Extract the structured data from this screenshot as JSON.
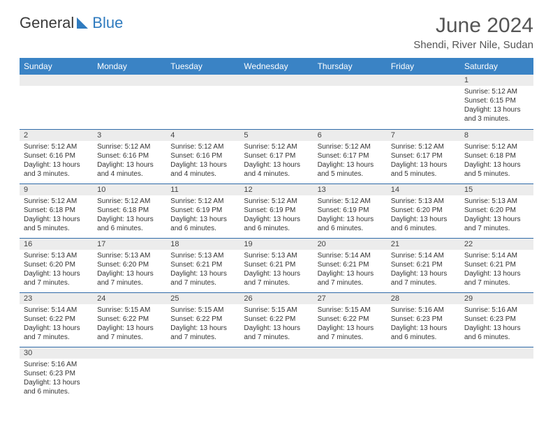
{
  "logo": {
    "text1": "General",
    "text2": "Blue"
  },
  "title": "June 2024",
  "location": "Shendi, River Nile, Sudan",
  "colors": {
    "header_bg": "#3a83c5",
    "header_text": "#ffffff",
    "row_divider": "#2f6aa8",
    "daynum_bg": "#ececec",
    "logo_blue": "#2f7bbf"
  },
  "dayHeaders": [
    "Sunday",
    "Monday",
    "Tuesday",
    "Wednesday",
    "Thursday",
    "Friday",
    "Saturday"
  ],
  "weeks": [
    [
      null,
      null,
      null,
      null,
      null,
      null,
      {
        "n": "1",
        "sr": "Sunrise: 5:12 AM",
        "ss": "Sunset: 6:15 PM",
        "dl": "Daylight: 13 hours and 3 minutes."
      }
    ],
    [
      {
        "n": "2",
        "sr": "Sunrise: 5:12 AM",
        "ss": "Sunset: 6:16 PM",
        "dl": "Daylight: 13 hours and 3 minutes."
      },
      {
        "n": "3",
        "sr": "Sunrise: 5:12 AM",
        "ss": "Sunset: 6:16 PM",
        "dl": "Daylight: 13 hours and 4 minutes."
      },
      {
        "n": "4",
        "sr": "Sunrise: 5:12 AM",
        "ss": "Sunset: 6:16 PM",
        "dl": "Daylight: 13 hours and 4 minutes."
      },
      {
        "n": "5",
        "sr": "Sunrise: 5:12 AM",
        "ss": "Sunset: 6:17 PM",
        "dl": "Daylight: 13 hours and 4 minutes."
      },
      {
        "n": "6",
        "sr": "Sunrise: 5:12 AM",
        "ss": "Sunset: 6:17 PM",
        "dl": "Daylight: 13 hours and 5 minutes."
      },
      {
        "n": "7",
        "sr": "Sunrise: 5:12 AM",
        "ss": "Sunset: 6:17 PM",
        "dl": "Daylight: 13 hours and 5 minutes."
      },
      {
        "n": "8",
        "sr": "Sunrise: 5:12 AM",
        "ss": "Sunset: 6:18 PM",
        "dl": "Daylight: 13 hours and 5 minutes."
      }
    ],
    [
      {
        "n": "9",
        "sr": "Sunrise: 5:12 AM",
        "ss": "Sunset: 6:18 PM",
        "dl": "Daylight: 13 hours and 5 minutes."
      },
      {
        "n": "10",
        "sr": "Sunrise: 5:12 AM",
        "ss": "Sunset: 6:18 PM",
        "dl": "Daylight: 13 hours and 6 minutes."
      },
      {
        "n": "11",
        "sr": "Sunrise: 5:12 AM",
        "ss": "Sunset: 6:19 PM",
        "dl": "Daylight: 13 hours and 6 minutes."
      },
      {
        "n": "12",
        "sr": "Sunrise: 5:12 AM",
        "ss": "Sunset: 6:19 PM",
        "dl": "Daylight: 13 hours and 6 minutes."
      },
      {
        "n": "13",
        "sr": "Sunrise: 5:12 AM",
        "ss": "Sunset: 6:19 PM",
        "dl": "Daylight: 13 hours and 6 minutes."
      },
      {
        "n": "14",
        "sr": "Sunrise: 5:13 AM",
        "ss": "Sunset: 6:20 PM",
        "dl": "Daylight: 13 hours and 6 minutes."
      },
      {
        "n": "15",
        "sr": "Sunrise: 5:13 AM",
        "ss": "Sunset: 6:20 PM",
        "dl": "Daylight: 13 hours and 7 minutes."
      }
    ],
    [
      {
        "n": "16",
        "sr": "Sunrise: 5:13 AM",
        "ss": "Sunset: 6:20 PM",
        "dl": "Daylight: 13 hours and 7 minutes."
      },
      {
        "n": "17",
        "sr": "Sunrise: 5:13 AM",
        "ss": "Sunset: 6:20 PM",
        "dl": "Daylight: 13 hours and 7 minutes."
      },
      {
        "n": "18",
        "sr": "Sunrise: 5:13 AM",
        "ss": "Sunset: 6:21 PM",
        "dl": "Daylight: 13 hours and 7 minutes."
      },
      {
        "n": "19",
        "sr": "Sunrise: 5:13 AM",
        "ss": "Sunset: 6:21 PM",
        "dl": "Daylight: 13 hours and 7 minutes."
      },
      {
        "n": "20",
        "sr": "Sunrise: 5:14 AM",
        "ss": "Sunset: 6:21 PM",
        "dl": "Daylight: 13 hours and 7 minutes."
      },
      {
        "n": "21",
        "sr": "Sunrise: 5:14 AM",
        "ss": "Sunset: 6:21 PM",
        "dl": "Daylight: 13 hours and 7 minutes."
      },
      {
        "n": "22",
        "sr": "Sunrise: 5:14 AM",
        "ss": "Sunset: 6:21 PM",
        "dl": "Daylight: 13 hours and 7 minutes."
      }
    ],
    [
      {
        "n": "23",
        "sr": "Sunrise: 5:14 AM",
        "ss": "Sunset: 6:22 PM",
        "dl": "Daylight: 13 hours and 7 minutes."
      },
      {
        "n": "24",
        "sr": "Sunrise: 5:15 AM",
        "ss": "Sunset: 6:22 PM",
        "dl": "Daylight: 13 hours and 7 minutes."
      },
      {
        "n": "25",
        "sr": "Sunrise: 5:15 AM",
        "ss": "Sunset: 6:22 PM",
        "dl": "Daylight: 13 hours and 7 minutes."
      },
      {
        "n": "26",
        "sr": "Sunrise: 5:15 AM",
        "ss": "Sunset: 6:22 PM",
        "dl": "Daylight: 13 hours and 7 minutes."
      },
      {
        "n": "27",
        "sr": "Sunrise: 5:15 AM",
        "ss": "Sunset: 6:22 PM",
        "dl": "Daylight: 13 hours and 7 minutes."
      },
      {
        "n": "28",
        "sr": "Sunrise: 5:16 AM",
        "ss": "Sunset: 6:23 PM",
        "dl": "Daylight: 13 hours and 6 minutes."
      },
      {
        "n": "29",
        "sr": "Sunrise: 5:16 AM",
        "ss": "Sunset: 6:23 PM",
        "dl": "Daylight: 13 hours and 6 minutes."
      }
    ],
    [
      {
        "n": "30",
        "sr": "Sunrise: 5:16 AM",
        "ss": "Sunset: 6:23 PM",
        "dl": "Daylight: 13 hours and 6 minutes."
      },
      null,
      null,
      null,
      null,
      null,
      null
    ]
  ]
}
